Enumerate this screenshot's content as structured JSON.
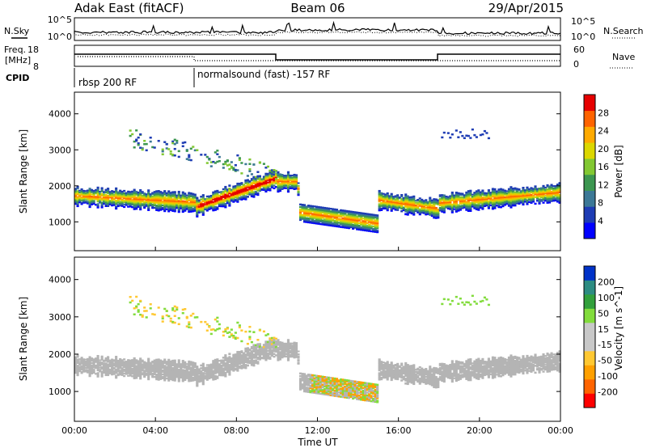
{
  "header": {
    "station": "Adak East (fitACF)",
    "beam": "Beam 06",
    "date": "29/Apr/2015"
  },
  "noise_panel": {
    "left_label": "N.Sky",
    "right_label": "N.Search",
    "left_ticks": [
      "10^5",
      "10^0"
    ],
    "right_ticks": [
      "10^5",
      "10^0"
    ]
  },
  "freq_panel": {
    "label_line1": "Freq.",
    "label_line2": "[MHz]",
    "left_ticks": [
      "18",
      "8"
    ],
    "right_label": "Nave",
    "right_ticks": [
      "60",
      "0"
    ]
  },
  "cpid": {
    "label": "CPID",
    "modes": [
      "rbsp 200 RF",
      "normalsound (fast) -157 RF"
    ]
  },
  "colors": {
    "power_scale": [
      "#0000ff",
      "#1e3cb4",
      "#3c7896",
      "#3c9650",
      "#82c832",
      "#dcd700",
      "#ffaa00",
      "#ff6400",
      "#e60000"
    ],
    "velocity_scale": [
      "#ff0000",
      "#ff6400",
      "#ffa000",
      "#ffc832",
      "#c8c8c8",
      "#c8c8c8",
      "#82dc3c",
      "#32a03c",
      "#2d8c82",
      "#0032c8"
    ],
    "ground_scatter": "#b4b4b4"
  },
  "chart_data": [
    {
      "type": "heatmap",
      "name": "power",
      "ylabel": "Slant Range [km]",
      "xlabel": "Time UT",
      "xlim": [
        0,
        24
      ],
      "ylim": [
        200,
        4600
      ],
      "x_ticks": [
        "00:00",
        "04:00",
        "08:00",
        "12:00",
        "16:00",
        "20:00",
        "00:00"
      ],
      "y_ticks": [
        "1000",
        "2000",
        "3000",
        "4000"
      ],
      "colorbar_label": "Power [dB]",
      "colorbar_ticks": [
        "28",
        "24",
        "20",
        "16",
        "12",
        "8",
        "4"
      ],
      "colorbar_range": [
        0,
        32
      ]
    },
    {
      "type": "heatmap",
      "name": "velocity",
      "ylabel": "Slant Range [km]",
      "xlabel": "Time UT",
      "xlim": [
        0,
        24
      ],
      "ylim": [
        200,
        4600
      ],
      "x_ticks": [
        "00:00",
        "04:00",
        "08:00",
        "12:00",
        "16:00",
        "20:00",
        "00:00"
      ],
      "y_ticks": [
        "1000",
        "2000",
        "3000",
        "4000"
      ],
      "colorbar_label": "Velocity [m s^-1]",
      "colorbar_ticks": [
        "200",
        "100",
        "50",
        "15",
        "-15",
        "-50",
        "-100",
        "-200"
      ]
    }
  ],
  "x_axis_title": "Time UT"
}
